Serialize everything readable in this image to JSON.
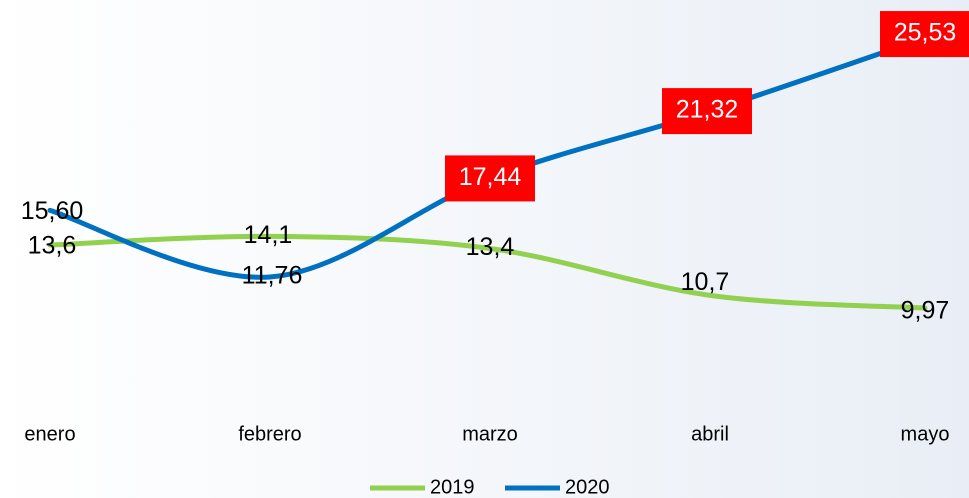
{
  "chart_data": {
    "type": "line",
    "categories": [
      "enero",
      "febrero",
      "marzo",
      "abril",
      "mayo"
    ],
    "series": [
      {
        "name": "2019",
        "color": "#92d050",
        "values": [
          13.6,
          14.1,
          13.4,
          10.7,
          9.97
        ],
        "value_labels": [
          "13,6",
          "14,1",
          "13,4",
          "10,7",
          "9,97"
        ]
      },
      {
        "name": "2020",
        "color": "#0070c0",
        "values": [
          15.6,
          11.76,
          17.44,
          21.32,
          25.53
        ],
        "value_labels": [
          "15,60",
          "11,76",
          "17,44",
          "21,32",
          "25,53"
        ],
        "label_highlight_color": "#ff0000"
      }
    ],
    "legend": "bottom"
  }
}
